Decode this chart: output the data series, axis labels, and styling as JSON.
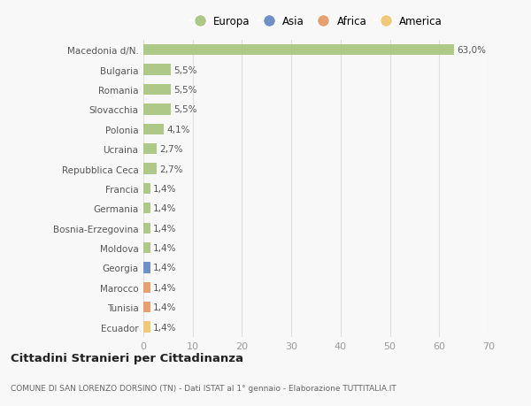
{
  "categories": [
    "Ecuador",
    "Tunisia",
    "Marocco",
    "Georgia",
    "Moldova",
    "Bosnia-Erzegovina",
    "Germania",
    "Francia",
    "Repubblica Ceca",
    "Ucraina",
    "Polonia",
    "Slovacchia",
    "Romania",
    "Bulgaria",
    "Macedonia d/N."
  ],
  "values": [
    1.4,
    1.4,
    1.4,
    1.4,
    1.4,
    1.4,
    1.4,
    1.4,
    2.7,
    2.7,
    4.1,
    5.5,
    5.5,
    5.5,
    63.0
  ],
  "labels": [
    "1,4%",
    "1,4%",
    "1,4%",
    "1,4%",
    "1,4%",
    "1,4%",
    "1,4%",
    "1,4%",
    "2,7%",
    "2,7%",
    "4,1%",
    "5,5%",
    "5,5%",
    "5,5%",
    "63,0%"
  ],
  "bar_colors": [
    "#f0c878",
    "#e8a070",
    "#e8a070",
    "#7090c8",
    "#aec888",
    "#aec888",
    "#aec888",
    "#aec888",
    "#aec888",
    "#aec888",
    "#aec888",
    "#aec888",
    "#aec888",
    "#aec888",
    "#aec888"
  ],
  "legend_labels": [
    "Europa",
    "Asia",
    "Africa",
    "America"
  ],
  "legend_colors": [
    "#aec888",
    "#7090c8",
    "#e8a070",
    "#f0c878"
  ],
  "xlim": [
    0,
    70
  ],
  "xticks": [
    0,
    10,
    20,
    30,
    40,
    50,
    60,
    70
  ],
  "title": "Cittadini Stranieri per Cittadinanza",
  "subtitle": "COMUNE DI SAN LORENZO DORSINO (TN) - Dati ISTAT al 1° gennaio - Elaborazione TUTTITALIA.IT",
  "bg_color": "#f8f8f8",
  "grid_color": "#e0e0e0",
  "bar_height": 0.55
}
